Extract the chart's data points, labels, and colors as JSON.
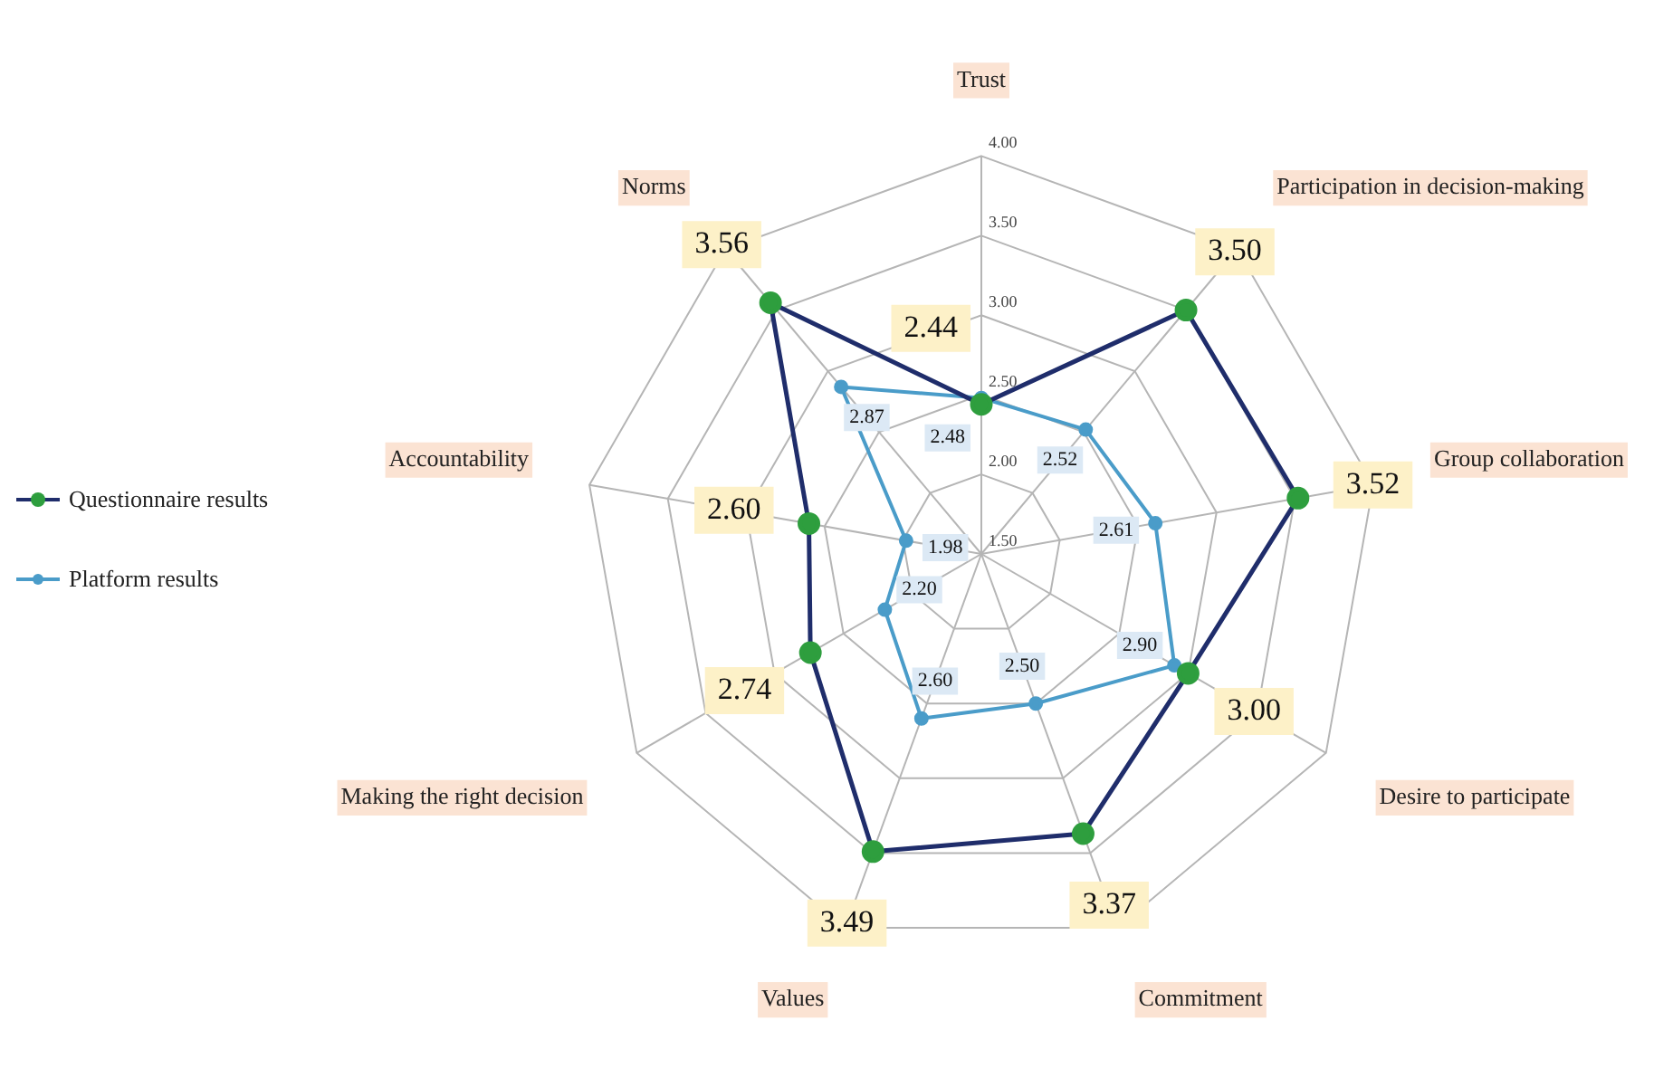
{
  "chart_data": {
    "type": "radar",
    "categories": [
      "Trust",
      "Participation in decision-making",
      "Group collaboration",
      "Desire to participate",
      "Commitment",
      "Values",
      "Making the right decision",
      "Accountability",
      "Norms"
    ],
    "series": [
      {
        "name": "Questionnaire results",
        "color": "#1f2d6b",
        "values": [
          2.44,
          3.5,
          3.52,
          3.0,
          3.37,
          3.49,
          2.74,
          2.6,
          3.56
        ],
        "value_labels": [
          "2.44",
          "3.50",
          "3.52",
          "3.00",
          "3.37",
          "3.49",
          "2.74",
          "2.60",
          "3.56"
        ]
      },
      {
        "name": "Platform results",
        "color": "#4a9cc9",
        "values": [
          2.48,
          2.52,
          2.61,
          2.9,
          2.5,
          2.6,
          2.2,
          1.98,
          2.87
        ],
        "value_labels": [
          "2.48",
          "2.52",
          "2.61",
          "2.90",
          "2.50",
          "2.60",
          "2.20",
          "1.98",
          "2.87"
        ]
      }
    ],
    "ylim": [
      1.5,
      4
    ],
    "yticks": [
      {
        "value": 1.5,
        "label": "1.50"
      },
      {
        "value": 2,
        "label": "2.00"
      },
      {
        "value": 2.5,
        "label": "2.50"
      },
      {
        "value": 3,
        "label": "3.00"
      },
      {
        "value": 3.5,
        "label": "3.50"
      },
      {
        "value": 4,
        "label": "4.00"
      }
    ],
    "grid": true,
    "legend": "left",
    "marker": "circle",
    "data_labels": true
  }
}
